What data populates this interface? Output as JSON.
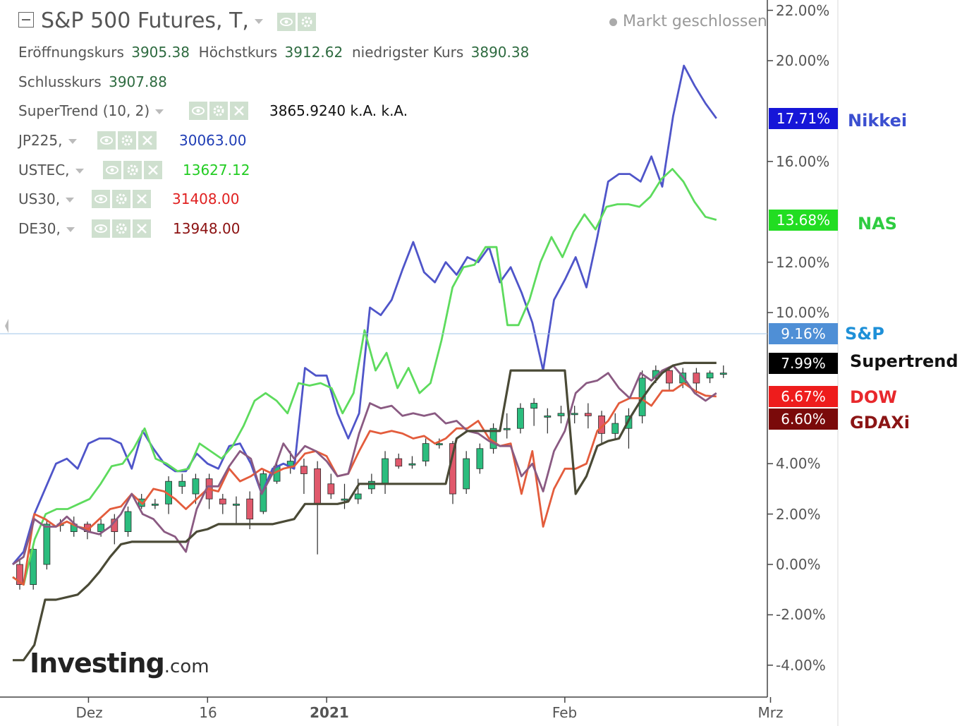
{
  "title": "S&P 500 Futures, T,",
  "market_status": "Markt geschlossen",
  "ohlc": {
    "open_label": "Eröffnungskurs",
    "open": "3905.38",
    "high_label": "Höchstkurs",
    "high": "3912.62",
    "low_label": "niedrigster Kurs",
    "low": "3890.38",
    "close_label": "Schlusskurs",
    "close": "3907.88"
  },
  "indicators": [
    {
      "name": "SuperTrend (10, 2)",
      "value": "3865.9240  k.A.  k.A.",
      "color": "#111111"
    },
    {
      "name": "JP225,",
      "value": "30063.00",
      "color": "#1f3db5"
    },
    {
      "name": "USTEC,",
      "value": "13627.12",
      "color": "#22cc22"
    },
    {
      "name": "US30,",
      "value": "31408.00",
      "color": "#e02020"
    },
    {
      "name": "DE30,",
      "value": "13948.00",
      "color": "#8b1010"
    }
  ],
  "logo": {
    "main": "Investing",
    "suffix": ".com"
  },
  "side_labels": [
    {
      "text": "Nikkei",
      "color": "#3b4fd0"
    },
    {
      "text": "NAS",
      "color": "#2ecc40"
    },
    {
      "text": "S&P",
      "color": "#1e90d8"
    },
    {
      "text": "Supertrend",
      "color": "#111111"
    },
    {
      "text": "DOW",
      "color": "#e8282c"
    },
    {
      "text": "GDAXi",
      "color": "#8b1515"
    }
  ],
  "chart_data": {
    "type": "line",
    "y_unit": "%",
    "y_ticks": [
      "22.00%",
      "20.00%",
      "16.00%",
      "12.00%",
      "10.00%",
      "4.00%",
      "2.00%",
      "0.00%",
      "-2.00%",
      "-4.00%"
    ],
    "y_tick_values": [
      22,
      20,
      16,
      12,
      10,
      4,
      2,
      0,
      -2,
      -4
    ],
    "ylim": [
      -5.5,
      22.5
    ],
    "x_ticks": [
      {
        "label": "Dez",
        "index": 7,
        "bold": false
      },
      {
        "label": "16",
        "index": 18,
        "bold": false
      },
      {
        "label": "2021",
        "index": 29,
        "bold": true
      },
      {
        "label": "Feb",
        "index": 51,
        "bold": false
      },
      {
        "label": "Mrz",
        "index": 70,
        "bold": false
      }
    ],
    "x_count": 73,
    "series": [
      {
        "name": "JP225",
        "color": "#4f55c9",
        "last_label": "17.71%",
        "values": [
          0.0,
          0.5,
          2.0,
          3.0,
          4.0,
          4.2,
          3.8,
          4.8,
          5.0,
          5.0,
          4.8,
          3.8,
          5.3,
          4.6,
          4.0,
          3.7,
          3.7,
          4.4,
          4.0,
          3.8,
          4.7,
          4.8,
          4.0,
          2.8,
          3.8,
          4.0,
          3.8,
          7.8,
          7.5,
          7.5,
          6.0,
          5.0,
          6.0,
          10.2,
          9.9,
          10.5,
          11.7,
          12.8,
          11.6,
          11.2,
          12.0,
          11.5,
          12.2,
          12.0,
          12.6,
          11.2,
          11.8,
          10.8,
          9.6,
          7.7,
          10.5,
          11.3,
          12.2,
          11.0,
          13.0,
          15.2,
          15.5,
          15.5,
          15.2,
          16.2,
          15.0,
          17.8,
          19.8,
          19.0,
          18.3,
          17.71
        ]
      },
      {
        "name": "USTEC",
        "color": "#5ddb5d",
        "last_label": "13.68%",
        "values": [
          -0.5,
          -0.8,
          1.0,
          2.0,
          2.2,
          2.2,
          2.4,
          2.6,
          3.2,
          3.9,
          4.0,
          4.6,
          5.4,
          4.2,
          4.0,
          3.7,
          3.8,
          4.8,
          4.5,
          4.2,
          4.7,
          5.5,
          6.5,
          6.8,
          6.5,
          6.0,
          7.2,
          7.1,
          7.2,
          7.0,
          6.0,
          6.8,
          9.3,
          7.7,
          8.4,
          7.0,
          7.8,
          6.8,
          7.2,
          8.9,
          11.0,
          11.8,
          11.9,
          12.6,
          12.6,
          9.5,
          9.5,
          10.5,
          12.0,
          13.0,
          12.2,
          13.2,
          13.9,
          13.3,
          14.2,
          14.3,
          14.3,
          14.2,
          14.6,
          15.3,
          15.7,
          15.2,
          14.4,
          13.8,
          13.68
        ]
      },
      {
        "name": "US30",
        "color": "#e35c3c",
        "last_label": "6.67%",
        "values": [
          -0.5,
          -0.8,
          2.0,
          1.8,
          1.5,
          1.7,
          1.5,
          1.4,
          1.8,
          2.2,
          2.3,
          2.8,
          2.4,
          3.0,
          2.9,
          2.6,
          2.2,
          2.6,
          3.0,
          2.9,
          3.8,
          3.3,
          3.5,
          3.8,
          3.6,
          3.8,
          3.9,
          4.4,
          4.5,
          4.3,
          3.5,
          3.6,
          4.5,
          5.3,
          5.2,
          5.3,
          5.2,
          5.0,
          5.1,
          4.8,
          5.0,
          5.4,
          5.4,
          5.7,
          5.0,
          4.7,
          4.8,
          2.8,
          4.5,
          1.5,
          3.0,
          3.8,
          3.8,
          4.0,
          5.3,
          5.7,
          6.4,
          6.6,
          6.6,
          6.3,
          6.9,
          6.9,
          7.2,
          6.9,
          6.7,
          6.67
        ]
      },
      {
        "name": "DE30",
        "color": "#8a5a82",
        "last_label": "6.60%",
        "values": [
          0.0,
          0.3,
          1.8,
          1.5,
          1.5,
          1.9,
          1.5,
          1.3,
          1.2,
          1.5,
          2.0,
          2.8,
          2.0,
          1.8,
          1.3,
          1.1,
          0.5,
          2.2,
          3.1,
          3.1,
          3.9,
          4.5,
          4.2,
          2.8,
          3.6,
          4.8,
          4.2,
          4.7,
          4.5,
          4.1,
          3.5,
          3.6,
          5.2,
          6.4,
          6.2,
          6.3,
          5.9,
          6.0,
          5.9,
          6.0,
          5.6,
          5.7,
          5.3,
          5.2,
          4.9,
          4.7,
          4.7,
          3.5,
          4.0,
          2.9,
          4.5,
          5.3,
          6.8,
          7.2,
          7.3,
          7.6,
          7.0,
          6.6,
          7.6,
          7.3,
          7.7,
          7.9,
          7.4,
          6.8,
          6.5,
          6.8
        ]
      },
      {
        "name": "SuperTrend",
        "color": "#4a4a36",
        "last_label": "7.99%",
        "values": [
          -3.8,
          -3.8,
          -3.2,
          -1.4,
          -1.4,
          -1.3,
          -1.2,
          -0.8,
          -0.3,
          0.3,
          0.8,
          0.9,
          0.9,
          0.9,
          0.9,
          0.9,
          0.9,
          1.3,
          1.4,
          1.6,
          1.6,
          1.6,
          1.6,
          1.6,
          1.6,
          1.7,
          1.8,
          2.4,
          2.4,
          2.4,
          2.4,
          2.5,
          3.2,
          3.2,
          3.2,
          3.2,
          3.2,
          3.2,
          3.2,
          3.2,
          3.2,
          5.0,
          5.3,
          5.3,
          5.3,
          5.3,
          7.7,
          7.7,
          7.7,
          7.7,
          7.7,
          7.7,
          2.8,
          3.5,
          4.7,
          4.9,
          5.0,
          5.8,
          6.5,
          7.1,
          7.6,
          7.9,
          8.0,
          8.0,
          8.0,
          8.0
        ]
      }
    ],
    "candles": [
      {
        "o": 0.0,
        "c": -0.8,
        "h": 0.2,
        "l": -1.0
      },
      {
        "o": -0.8,
        "c": 0.6,
        "h": 0.8,
        "l": -1.0
      },
      {
        "o": 0.0,
        "c": 1.6,
        "h": 1.8,
        "l": -0.2
      },
      {
        "o": 1.6,
        "c": 1.6,
        "h": 1.8,
        "l": 1.3
      },
      {
        "o": 1.3,
        "c": 1.6,
        "h": 1.9,
        "l": 1.1
      },
      {
        "o": 1.6,
        "c": 1.3,
        "h": 1.7,
        "l": 1.0
      },
      {
        "o": 1.3,
        "c": 1.6,
        "h": 1.8,
        "l": 1.1
      },
      {
        "o": 1.8,
        "c": 1.3,
        "h": 2.0,
        "l": 0.8
      },
      {
        "o": 1.3,
        "c": 2.1,
        "h": 2.3,
        "l": 1.1
      },
      {
        "o": 2.3,
        "c": 2.6,
        "h": 2.8,
        "l": 2.2
      },
      {
        "o": 2.4,
        "c": 2.4,
        "h": 2.6,
        "l": 2.2
      },
      {
        "o": 2.4,
        "c": 3.3,
        "h": 3.5,
        "l": 2.0
      },
      {
        "o": 3.1,
        "c": 3.3,
        "h": 3.6,
        "l": 2.8
      },
      {
        "o": 2.8,
        "c": 3.4,
        "h": 3.6,
        "l": 2.4
      },
      {
        "o": 3.4,
        "c": 2.6,
        "h": 3.6,
        "l": 2.2
      },
      {
        "o": 2.6,
        "c": 2.4,
        "h": 2.8,
        "l": 2.0
      },
      {
        "o": 2.4,
        "c": 2.4,
        "h": 2.7,
        "l": 1.6
      },
      {
        "o": 2.6,
        "c": 1.8,
        "h": 2.9,
        "l": 1.4
      },
      {
        "o": 2.1,
        "c": 3.6,
        "h": 3.8,
        "l": 2.0
      },
      {
        "o": 3.3,
        "c": 3.9,
        "h": 4.1,
        "l": 3.2
      },
      {
        "o": 3.9,
        "c": 4.1,
        "h": 4.5,
        "l": 3.6
      },
      {
        "o": 3.9,
        "c": 3.6,
        "h": 4.2,
        "l": 2.8
      },
      {
        "o": 3.8,
        "c": 2.4,
        "h": 4.1,
        "l": 0.4
      },
      {
        "o": 3.2,
        "c": 2.8,
        "h": 3.6,
        "l": 2.6
      },
      {
        "o": 2.6,
        "c": 2.6,
        "h": 3.2,
        "l": 2.2
      },
      {
        "o": 2.6,
        "c": 2.8,
        "h": 3.4,
        "l": 2.4
      },
      {
        "o": 3.0,
        "c": 3.3,
        "h": 3.6,
        "l": 2.8
      },
      {
        "o": 3.2,
        "c": 4.2,
        "h": 4.5,
        "l": 2.8
      },
      {
        "o": 4.2,
        "c": 3.9,
        "h": 4.4,
        "l": 3.8
      },
      {
        "o": 4.0,
        "c": 4.0,
        "h": 4.3,
        "l": 3.8
      },
      {
        "o": 4.1,
        "c": 4.8,
        "h": 5.0,
        "l": 3.9
      },
      {
        "o": 4.8,
        "c": 4.8,
        "h": 5.0,
        "l": 4.6
      },
      {
        "o": 4.8,
        "c": 2.8,
        "h": 4.9,
        "l": 2.4
      },
      {
        "o": 3.0,
        "c": 4.2,
        "h": 4.5,
        "l": 2.8
      },
      {
        "o": 3.8,
        "c": 4.6,
        "h": 4.8,
        "l": 3.6
      },
      {
        "o": 4.6,
        "c": 5.4,
        "h": 5.6,
        "l": 4.4
      },
      {
        "o": 5.4,
        "c": 5.4,
        "h": 6.0,
        "l": 5.0
      },
      {
        "o": 5.4,
        "c": 6.2,
        "h": 6.4,
        "l": 5.2
      },
      {
        "o": 6.2,
        "c": 6.4,
        "h": 6.6,
        "l": 5.5
      },
      {
        "o": 5.9,
        "c": 5.9,
        "h": 6.2,
        "l": 5.2
      },
      {
        "o": 5.9,
        "c": 6.0,
        "h": 6.3,
        "l": 5.6
      },
      {
        "o": 6.0,
        "c": 6.0,
        "h": 6.3,
        "l": 5.6
      },
      {
        "o": 6.0,
        "c": 5.9,
        "h": 6.4,
        "l": 5.4
      },
      {
        "o": 5.9,
        "c": 5.2,
        "h": 6.1,
        "l": 4.8
      },
      {
        "o": 5.2,
        "c": 5.6,
        "h": 6.0,
        "l": 5.0
      },
      {
        "o": 5.4,
        "c": 5.9,
        "h": 6.2,
        "l": 4.6
      },
      {
        "o": 5.9,
        "c": 7.4,
        "h": 7.7,
        "l": 5.6
      },
      {
        "o": 7.4,
        "c": 7.7,
        "h": 7.9,
        "l": 7.2
      },
      {
        "o": 7.7,
        "c": 7.2,
        "h": 7.8,
        "l": 6.9
      },
      {
        "o": 7.2,
        "c": 7.6,
        "h": 7.8,
        "l": 7.0
      },
      {
        "o": 7.6,
        "c": 7.2,
        "h": 7.8,
        "l": 6.8
      },
      {
        "o": 7.4,
        "c": 7.6,
        "h": 7.7,
        "l": 7.2
      },
      {
        "o": 7.6,
        "c": 7.6,
        "h": 7.9,
        "l": 7.4
      }
    ]
  }
}
